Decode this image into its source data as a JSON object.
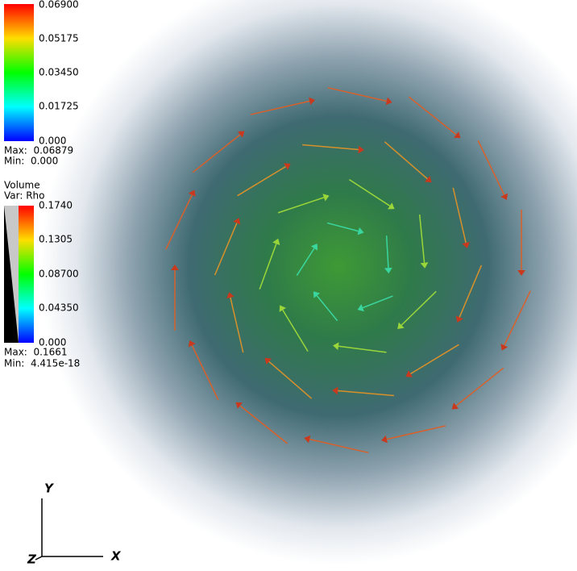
{
  "vector_legend": {
    "ticks": [
      "0.06900",
      "0.05175",
      "0.03450",
      "0.01725",
      "0.000"
    ],
    "max": "Max:  0.06879",
    "min": "Min:  0.000"
  },
  "volume_legend": {
    "title": "Volume",
    "var": "Var: Rho",
    "ticks": [
      "0.1740",
      "0.1305",
      "0.08700",
      "0.04350",
      "0.000"
    ],
    "max": "Max:  0.1661",
    "min": "Min:  4.415e-18"
  },
  "axes": {
    "y": "Y",
    "x": "X",
    "z": "Z"
  }
}
